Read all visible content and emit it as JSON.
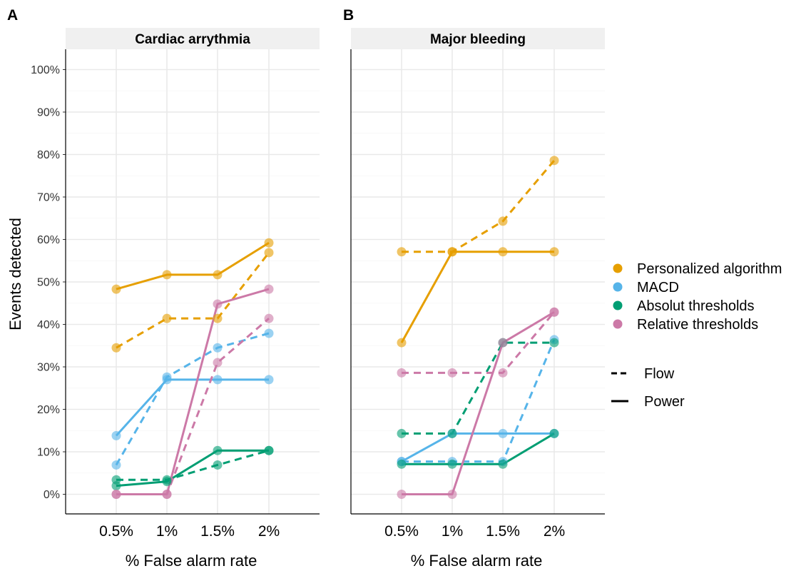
{
  "chart_data": [
    {
      "type": "line",
      "panel_tag": "A",
      "title": "Cardiac arrythmia",
      "xlabel": "% False alarm rate",
      "ylabel": "Events detected",
      "categories": [
        "0.5%",
        "1%",
        "1.5%",
        "2%"
      ],
      "y_ticks": [
        "0%",
        "10%",
        "20%",
        "30%",
        "40%",
        "50%",
        "60%",
        "70%",
        "80%",
        "90%",
        "100%"
      ],
      "ylim": [
        -4,
        105
      ],
      "grid": true,
      "series": [
        {
          "name": "Personalized algorithm",
          "style": "Power",
          "color": "#E69F00",
          "values": [
            48.3,
            51.7,
            51.7,
            59.2
          ]
        },
        {
          "name": "Personalized algorithm",
          "style": "Flow",
          "color": "#E69F00",
          "values": [
            34.5,
            41.4,
            41.4,
            56.9
          ]
        },
        {
          "name": "MACD",
          "style": "Power",
          "color": "#56B4E9",
          "values": [
            13.8,
            27.0,
            27.0,
            27.0
          ]
        },
        {
          "name": "MACD",
          "style": "Flow",
          "color": "#56B4E9",
          "values": [
            6.9,
            27.6,
            34.5,
            37.9
          ]
        },
        {
          "name": "Absolut thresholds",
          "style": "Power",
          "color": "#009E73",
          "values": [
            2.0,
            3.0,
            10.3,
            10.3
          ]
        },
        {
          "name": "Absolut thresholds",
          "style": "Flow",
          "color": "#009E73",
          "values": [
            3.4,
            3.4,
            6.9,
            10.3
          ]
        },
        {
          "name": "Relative thresholds",
          "style": "Power",
          "color": "#CC79A7",
          "values": [
            0.0,
            0.0,
            44.8,
            48.3
          ]
        },
        {
          "name": "Relative thresholds",
          "style": "Flow",
          "color": "#CC79A7",
          "values": [
            0.0,
            0.0,
            31.0,
            41.4
          ]
        }
      ]
    },
    {
      "type": "line",
      "panel_tag": "B",
      "title": "Major bleeding",
      "xlabel": "% False alarm rate",
      "categories": [
        "0.5%",
        "1%",
        "1.5%",
        "2%"
      ],
      "ylim": [
        -4,
        105
      ],
      "grid": true,
      "series": [
        {
          "name": "Personalized algorithm",
          "style": "Power",
          "color": "#E69F00",
          "values": [
            35.7,
            57.1,
            57.1,
            57.1
          ]
        },
        {
          "name": "Personalized algorithm",
          "style": "Flow",
          "color": "#E69F00",
          "values": [
            57.1,
            57.1,
            64.3,
            78.6
          ]
        },
        {
          "name": "MACD",
          "style": "Power",
          "color": "#56B4E9",
          "values": [
            7.7,
            14.3,
            14.3,
            14.3
          ]
        },
        {
          "name": "MACD",
          "style": "Flow",
          "color": "#56B4E9",
          "values": [
            7.7,
            7.7,
            7.7,
            36.4
          ]
        },
        {
          "name": "Absolut thresholds",
          "style": "Power",
          "color": "#009E73",
          "values": [
            7.1,
            7.1,
            7.1,
            14.3
          ]
        },
        {
          "name": "Absolut thresholds",
          "style": "Flow",
          "color": "#009E73",
          "values": [
            14.3,
            14.3,
            35.7,
            35.7
          ]
        },
        {
          "name": "Relative thresholds",
          "style": "Power",
          "color": "#CC79A7",
          "values": [
            0.0,
            0.0,
            35.7,
            42.9
          ]
        },
        {
          "name": "Relative thresholds",
          "style": "Flow",
          "color": "#CC79A7",
          "values": [
            28.6,
            28.6,
            28.6,
            42.9
          ]
        }
      ]
    }
  ],
  "legend": {
    "placement": "right",
    "colors": [
      {
        "label": "Personalized algorithm",
        "color": "#E69F00"
      },
      {
        "label": "MACD",
        "color": "#56B4E9"
      },
      {
        "label": "Absolut thresholds",
        "color": "#009E73"
      },
      {
        "label": "Relative thresholds",
        "color": "#CC79A7"
      }
    ],
    "linetypes": [
      {
        "label": "Flow",
        "dash": true
      },
      {
        "label": "Power",
        "dash": false
      }
    ]
  }
}
